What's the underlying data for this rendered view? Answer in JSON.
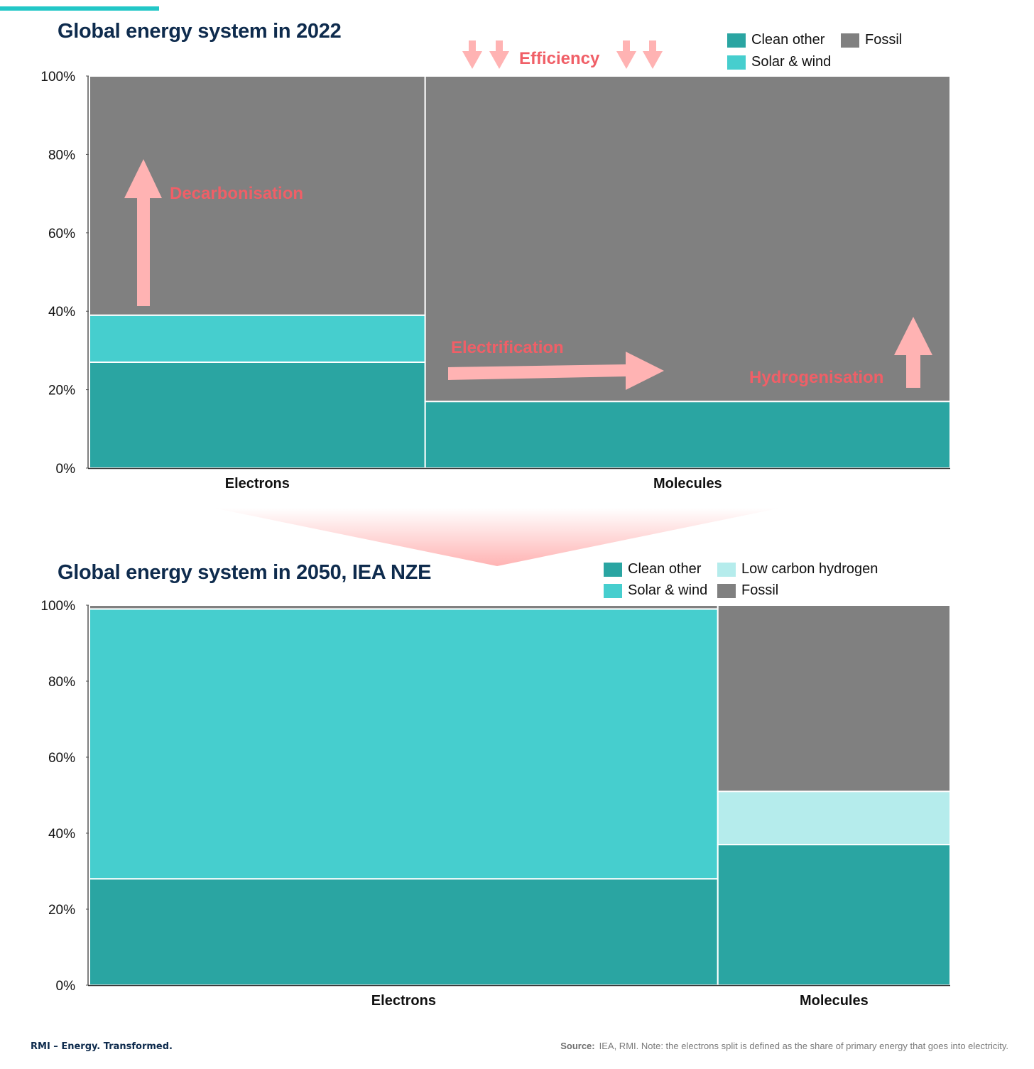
{
  "brand": {
    "footer": "RMI – Energy. Transformed."
  },
  "source": {
    "label": "Source:",
    "text": "IEA, RMI. Note: the electrons split is defined as the share of primary energy that goes into electricity."
  },
  "colors": {
    "clean_other": "#2aa5a2",
    "solar_wind": "#46cece",
    "low_carbon_hydrogen": "#b5ecec",
    "fossil": "#808080",
    "annotation": "#f05f67",
    "arrow": "#ffb3b3"
  },
  "chart_data": [
    {
      "type": "mekko",
      "title": "Global energy system in 2022",
      "ylim": [
        0,
        100
      ],
      "yticks": [
        "0%",
        "20%",
        "40%",
        "60%",
        "80%",
        "100%"
      ],
      "legend": [
        "Clean other",
        "Fossil",
        "Solar & wind"
      ],
      "categories": [
        {
          "label": "Electrons",
          "width_share": 39,
          "segments": [
            {
              "name": "Clean other",
              "value": 27
            },
            {
              "name": "Solar & wind",
              "value": 12
            },
            {
              "name": "Fossil",
              "value": 61
            }
          ]
        },
        {
          "label": "Molecules",
          "width_share": 61,
          "segments": [
            {
              "name": "Clean other",
              "value": 17
            },
            {
              "name": "Fossil",
              "value": 83
            }
          ]
        }
      ],
      "annotations": [
        "Efficiency",
        "Decarbonisation",
        "Electrification",
        "Hydrogenisation"
      ]
    },
    {
      "type": "mekko",
      "title": "Global energy system in 2050, IEA NZE",
      "ylim": [
        0,
        100
      ],
      "yticks": [
        "0%",
        "20%",
        "40%",
        "60%",
        "80%",
        "100%"
      ],
      "legend": [
        "Clean other",
        "Low carbon hydrogen",
        "Solar & wind",
        "Fossil"
      ],
      "categories": [
        {
          "label": "Electrons",
          "width_share": 73,
          "segments": [
            {
              "name": "Clean other",
              "value": 28
            },
            {
              "name": "Solar & wind",
              "value": 71
            },
            {
              "name": "Fossil",
              "value": 1
            }
          ]
        },
        {
          "label": "Molecules",
          "width_share": 27,
          "segments": [
            {
              "name": "Clean other",
              "value": 37
            },
            {
              "name": "Low carbon hydrogen",
              "value": 14
            },
            {
              "name": "Fossil",
              "value": 49
            }
          ]
        }
      ],
      "annotations": []
    }
  ]
}
